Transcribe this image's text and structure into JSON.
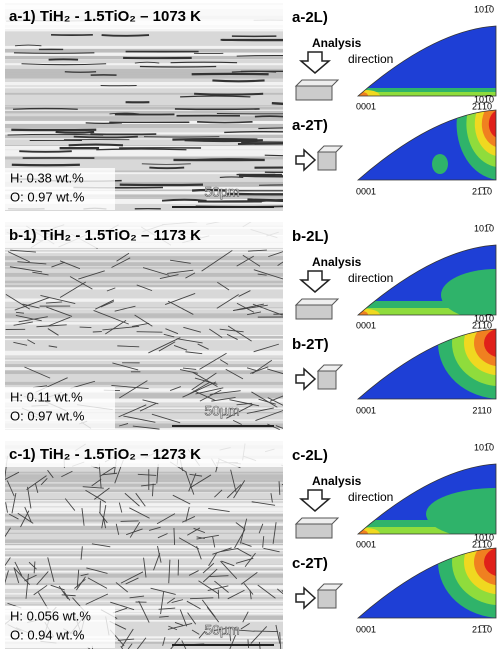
{
  "panels": [
    {
      "title": "a-1) TiH₂ - 1.5TiO₂ – 1073 K",
      "h": "H: 0.38 wt.%",
      "o": "O: 0.97 wt.%",
      "scale": "50µm",
      "longitudinal": {
        "label": "a-2L)",
        "analysis": "Analysis",
        "direction": "direction",
        "top": "101̅0",
        "left": "0001",
        "right": "21̅1̅0"
      },
      "transverse": {
        "label": "a-2T)",
        "top": "101̅0",
        "left": "0001",
        "right": "21̅1̅0"
      }
    },
    {
      "title": "b-1) TiH₂ - 1.5TiO₂ – 1173 K",
      "h": "H: 0.11 wt.%",
      "o": "O: 0.97 wt.%",
      "scale": "50µm",
      "longitudinal": {
        "label": "b-2L)",
        "analysis": "Analysis",
        "direction": "direction",
        "top": "101̅0",
        "left": "0001",
        "right": "21̅1̅0"
      },
      "transverse": {
        "label": "b-2T)",
        "top": "101̅0",
        "left": "0001",
        "right": "2110"
      }
    },
    {
      "title": "c-1) TiH₂ - 1.5TiO₂ – 1273 K",
      "h": "H: 0.056 wt.%",
      "o": "O: 0.94 wt.%",
      "scale": "50µm",
      "longitudinal": {
        "label": "c-2L)",
        "analysis": "Analysis",
        "direction": "direction",
        "top": "101̅0",
        "left": "0001",
        "right": "21̅1̅0"
      },
      "transverse": {
        "label": "c-2T)",
        "top": "1010",
        "left": "0001",
        "right": "21̅1̅0"
      }
    }
  ]
}
